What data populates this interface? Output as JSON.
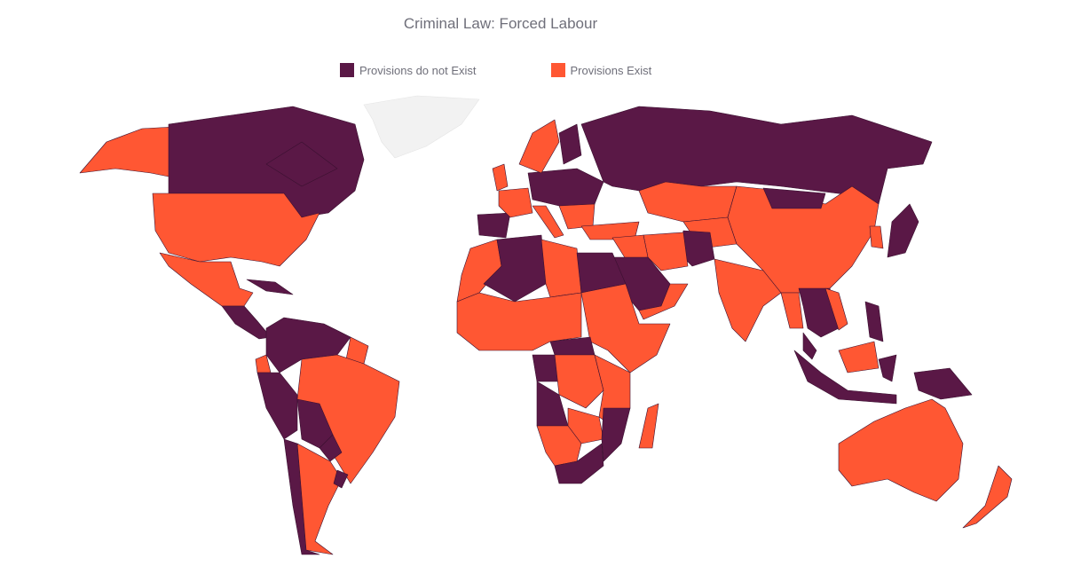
{
  "title": "Criminal Law: Forced Labour",
  "legend": [
    {
      "label": "Provisions do not Exist",
      "color": "#5a1846"
    },
    {
      "label": "Provisions Exist",
      "color": "#ff5733"
    }
  ],
  "no_data_color": "#f2f2f2",
  "regions": [
    {
      "name": "Greenland",
      "status": "none"
    },
    {
      "name": "Alaska",
      "status": "exist"
    },
    {
      "name": "Canada",
      "status": "not"
    },
    {
      "name": "United States",
      "status": "exist"
    },
    {
      "name": "Mexico",
      "status": "exist"
    },
    {
      "name": "Central America",
      "status": "not"
    },
    {
      "name": "Cuba",
      "status": "not"
    },
    {
      "name": "Colombia / Venezuela",
      "status": "not"
    },
    {
      "name": "Guyana",
      "status": "exist"
    },
    {
      "name": "Ecuador",
      "status": "exist"
    },
    {
      "name": "Peru",
      "status": "not"
    },
    {
      "name": "Brazil",
      "status": "exist"
    },
    {
      "name": "Bolivia",
      "status": "not"
    },
    {
      "name": "Paraguay",
      "status": "not"
    },
    {
      "name": "Chile",
      "status": "not"
    },
    {
      "name": "Argentina",
      "status": "exist"
    },
    {
      "name": "Uruguay",
      "status": "not"
    },
    {
      "name": "United Kingdom",
      "status": "exist"
    },
    {
      "name": "Spain / Portugal",
      "status": "not"
    },
    {
      "name": "France",
      "status": "exist"
    },
    {
      "name": "Central Europe",
      "status": "not"
    },
    {
      "name": "Italy",
      "status": "exist"
    },
    {
      "name": "Scandinavia",
      "status": "exist"
    },
    {
      "name": "Finland",
      "status": "not"
    },
    {
      "name": "Balkans",
      "status": "exist"
    },
    {
      "name": "Turkey",
      "status": "exist"
    },
    {
      "name": "Russia",
      "status": "not"
    },
    {
      "name": "Kazakhstan",
      "status": "exist"
    },
    {
      "name": "Central Asia",
      "status": "exist"
    },
    {
      "name": "Afghanistan",
      "status": "not"
    },
    {
      "name": "Iran",
      "status": "exist"
    },
    {
      "name": "Iraq / Syria",
      "status": "exist"
    },
    {
      "name": "Saudi Arabia",
      "status": "not"
    },
    {
      "name": "Oman / Yemen",
      "status": "exist"
    },
    {
      "name": "China",
      "status": "exist"
    },
    {
      "name": "Mongolia",
      "status": "not"
    },
    {
      "name": "Korea",
      "status": "exist"
    },
    {
      "name": "Japan",
      "status": "not"
    },
    {
      "name": "India",
      "status": "exist"
    },
    {
      "name": "Myanmar",
      "status": "exist"
    },
    {
      "name": "Thailand / Indochina",
      "status": "not"
    },
    {
      "name": "Vietnam",
      "status": "exist"
    },
    {
      "name": "Philippines",
      "status": "not"
    },
    {
      "name": "Malaysia",
      "status": "not"
    },
    {
      "name": "Borneo",
      "status": "exist"
    },
    {
      "name": "Indonesia",
      "status": "not"
    },
    {
      "name": "Papua New Guinea",
      "status": "not"
    },
    {
      "name": "Australia",
      "status": "exist"
    },
    {
      "name": "New Zealand",
      "status": "exist"
    },
    {
      "name": "Morocco / W. Sahara",
      "status": "exist"
    },
    {
      "name": "Algeria",
      "status": "not"
    },
    {
      "name": "Libya",
      "status": "exist"
    },
    {
      "name": "Egypt",
      "status": "not"
    },
    {
      "name": "Sahel & West Africa",
      "status": "exist"
    },
    {
      "name": "Sudan / Horn",
      "status": "exist"
    },
    {
      "name": "Central African Rep.",
      "status": "not"
    },
    {
      "name": "Gabon / Congo",
      "status": "not"
    },
    {
      "name": "DR Congo",
      "status": "exist"
    },
    {
      "name": "East Africa",
      "status": "exist"
    },
    {
      "name": "Angola",
      "status": "not"
    },
    {
      "name": "Zambia / Zimbabwe",
      "status": "exist"
    },
    {
      "name": "Mozambique",
      "status": "not"
    },
    {
      "name": "Namibia / Botswana",
      "status": "exist"
    },
    {
      "name": "South Africa",
      "status": "not"
    },
    {
      "name": "Madagascar",
      "status": "exist"
    }
  ]
}
